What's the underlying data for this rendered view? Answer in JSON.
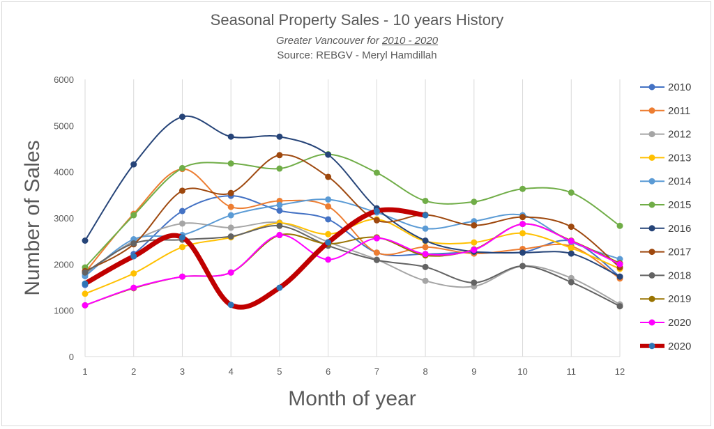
{
  "chart_data": {
    "type": "line",
    "title": "Seasonal Property Sales - 10 years History",
    "subtitle_prefix": "Greater Vancouver for ",
    "subtitle_range": "2010 - 2020",
    "source": "Source: REBGV  - Meryl Hamdillah",
    "xlabel": "Month of year",
    "ylabel": "Number of  Sales",
    "x": [
      1,
      2,
      3,
      4,
      5,
      6,
      7,
      8,
      9,
      10,
      11,
      12
    ],
    "ylim": [
      0,
      6000
    ],
    "yticks": [
      0,
      1000,
      2000,
      3000,
      4000,
      5000,
      6000
    ],
    "grid": "vertical",
    "legend": "right",
    "series": [
      {
        "name": "2010",
        "color": "#4472C4",
        "values": [
          1550,
          2220,
          3150,
          3480,
          3160,
          2970,
          2250,
          2220,
          2260,
          2260,
          2500,
          1730
        ]
      },
      {
        "name": "2011",
        "color": "#ED7D31",
        "values": [
          1820,
          3090,
          4060,
          3240,
          3370,
          3250,
          2250,
          2370,
          2230,
          2330,
          2390,
          1690
        ]
      },
      {
        "name": "2012",
        "color": "#A5A5A5",
        "values": [
          1780,
          2500,
          2880,
          2790,
          2900,
          2480,
          2100,
          1640,
          1520,
          1960,
          1700,
          1130
        ]
      },
      {
        "name": "2013",
        "color": "#FFC000",
        "values": [
          1360,
          1800,
          2370,
          2580,
          2890,
          2650,
          2970,
          2500,
          2470,
          2670,
          2350,
          1900
        ]
      },
      {
        "name": "2014",
        "color": "#5B9BD5",
        "values": [
          1740,
          2540,
          2630,
          3060,
          3280,
          3400,
          3120,
          2770,
          2930,
          3060,
          2480,
          2110
        ]
      },
      {
        "name": "2015",
        "color": "#70AD47",
        "values": [
          1930,
          3060,
          4080,
          4180,
          4070,
          4380,
          3980,
          3370,
          3350,
          3630,
          3550,
          2830
        ]
      },
      {
        "name": "2016",
        "color": "#264478",
        "values": [
          2510,
          4160,
          5190,
          4760,
          4760,
          4370,
          3210,
          2510,
          2270,
          2250,
          2230,
          1730
        ]
      },
      {
        "name": "2017",
        "color": "#9E480E",
        "values": [
          1850,
          2430,
          3590,
          3540,
          4360,
          3890,
          2950,
          3070,
          2840,
          3020,
          2810,
          1930
        ]
      },
      {
        "name": "2018",
        "color": "#636363",
        "values": [
          1820,
          2450,
          2530,
          2600,
          2830,
          2400,
          2090,
          1940,
          1600,
          1960,
          1610,
          1090
        ]
      },
      {
        "name": "2019",
        "color": "#997300",
        "values": [
          1110,
          1480,
          1730,
          1820,
          2630,
          2440,
          2580,
          2190,
          2320,
          2870,
          2510,
          2020
        ]
      },
      {
        "name": "2020",
        "color": "#FF00FF",
        "values": [
          1110,
          1490,
          1730,
          1820,
          2630,
          2100,
          2560,
          2220,
          2310,
          2870,
          2500,
          2000
        ]
      },
      {
        "name": "2020",
        "color": "#C00000",
        "values": [
          1580,
          2170,
          2580,
          1120,
          1490,
          2470,
          3150,
          3060,
          null,
          null,
          null,
          null
        ]
      }
    ]
  }
}
